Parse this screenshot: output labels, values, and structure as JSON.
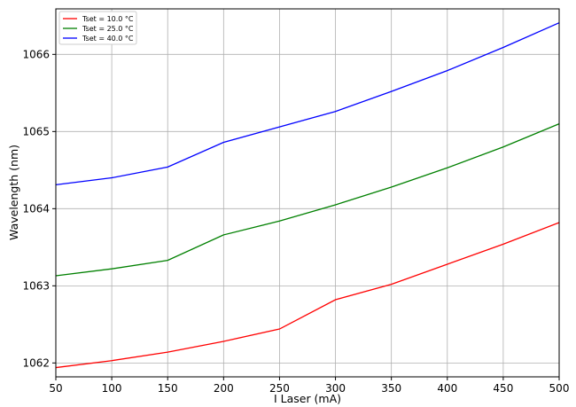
{
  "chart_data": {
    "type": "line",
    "title": "",
    "xlabel": "I Laser (mA)",
    "ylabel": "Wavelength (nm)",
    "xlim": [
      50,
      500
    ],
    "ylim": [
      1061.82,
      1066.59
    ],
    "grid": true,
    "legend_position": "top-left",
    "x": [
      50,
      100,
      150,
      200,
      250,
      300,
      350,
      400,
      450,
      500
    ],
    "xticks": [
      50,
      100,
      150,
      200,
      250,
      300,
      350,
      400,
      450,
      500
    ],
    "yticks": [
      1062,
      1063,
      1064,
      1065,
      1066
    ],
    "series": [
      {
        "name": "Tset = 10.0 °C",
        "color": "#ff0000",
        "values": [
          1061.94,
          1062.03,
          1062.14,
          1062.28,
          1062.44,
          1062.82,
          1063.02,
          1063.28,
          1063.54,
          1063.82
        ]
      },
      {
        "name": "Tset = 25.0 °C",
        "color": "#008000",
        "values": [
          1063.13,
          1063.22,
          1063.33,
          1063.66,
          1063.84,
          1064.05,
          1064.28,
          1064.53,
          1064.8,
          1065.1
        ]
      },
      {
        "name": "Tset = 40.0 °C",
        "color": "#0000ff",
        "values": [
          1064.31,
          1064.4,
          1064.54,
          1064.86,
          1065.06,
          1065.26,
          1065.52,
          1065.79,
          1066.09,
          1066.41
        ]
      }
    ]
  }
}
